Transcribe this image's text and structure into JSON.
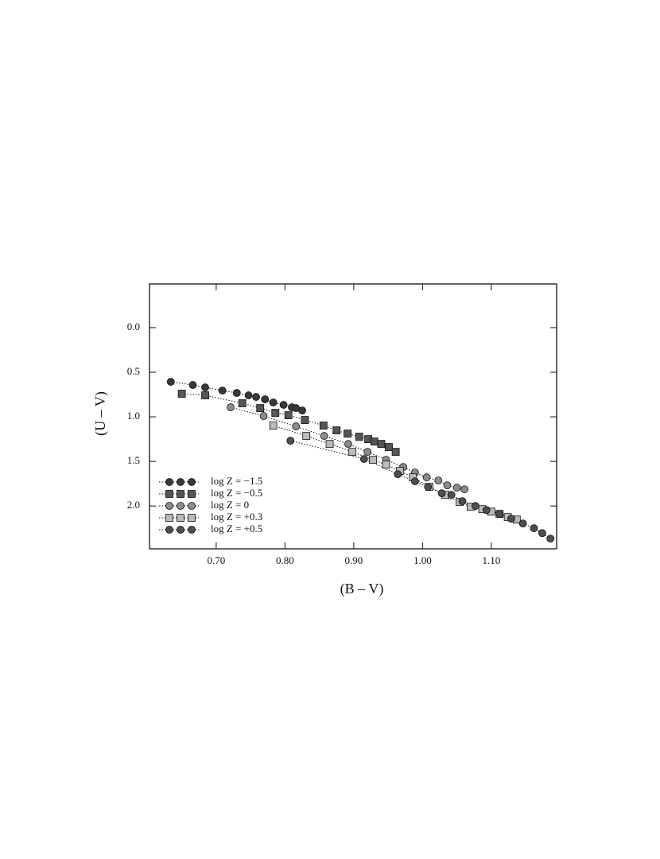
{
  "chart_data": {
    "type": "line",
    "x_label": "(B – V)",
    "y_label": "(U – V)",
    "xlim": [
      0.603,
      1.195
    ],
    "ylim": [
      -0.49,
      2.48
    ],
    "invert_y": true,
    "xticks": [
      {
        "value": 0.7,
        "label": "0.70"
      },
      {
        "value": 0.8,
        "label": "0.80"
      },
      {
        "value": 0.9,
        "label": "0.90"
      },
      {
        "value": 1.0,
        "label": "1.00"
      },
      {
        "value": 1.1,
        "label": "1.10"
      }
    ],
    "yticks": [
      {
        "value": 0,
        "label": "0.0"
      },
      {
        "value": 0.5,
        "label": "0.5"
      },
      {
        "value": 1.0,
        "label": "1.0"
      },
      {
        "value": 1.5,
        "label": "1.5"
      },
      {
        "value": 2.0,
        "label": "2.0"
      }
    ],
    "legend_position": "lower left",
    "line_style": "dotted",
    "series": [
      {
        "name": "log Z = −1.5",
        "color": "#383838",
        "marker": "circle",
        "x": [
          0.634,
          0.666,
          0.684,
          0.709,
          0.73,
          0.747,
          0.758,
          0.771,
          0.783,
          0.798,
          0.81,
          0.816,
          0.825
        ],
        "values": [
          0.607,
          0.643,
          0.67,
          0.705,
          0.732,
          0.759,
          0.777,
          0.804,
          0.839,
          0.866,
          0.893,
          0.902,
          0.929
        ]
      },
      {
        "name": "log Z = −0.5",
        "color": "#555555",
        "marker": "square",
        "x": [
          0.65,
          0.684,
          0.738,
          0.764,
          0.786,
          0.805,
          0.829,
          0.856,
          0.875,
          0.891,
          0.908,
          0.921,
          0.93,
          0.94,
          0.951,
          0.961
        ],
        "values": [
          0.741,
          0.759,
          0.848,
          0.902,
          0.955,
          0.982,
          1.036,
          1.098,
          1.152,
          1.188,
          1.223,
          1.25,
          1.277,
          1.304,
          1.339,
          1.393
        ]
      },
      {
        "name": "log Z = 0",
        "color": "#8c8c8c",
        "marker": "circle",
        "x": [
          0.721,
          0.769,
          0.816,
          0.857,
          0.892,
          0.92,
          0.947,
          0.972,
          0.989,
          1.006,
          1.023,
          1.036,
          1.05,
          1.061
        ],
        "values": [
          0.893,
          0.991,
          1.107,
          1.214,
          1.304,
          1.393,
          1.482,
          1.563,
          1.625,
          1.679,
          1.714,
          1.768,
          1.795,
          1.813
        ]
      },
      {
        "name": "log Z = +0.3",
        "color": "#bbbbbb",
        "marker": "square",
        "x": [
          0.783,
          0.831,
          0.865,
          0.898,
          0.928,
          0.947,
          0.967,
          0.986,
          1.01,
          1.033,
          1.054,
          1.07,
          1.087,
          1.1,
          1.112,
          1.124,
          1.137
        ],
        "values": [
          1.098,
          1.214,
          1.304,
          1.393,
          1.482,
          1.536,
          1.607,
          1.679,
          1.786,
          1.875,
          1.955,
          2.009,
          2.036,
          2.063,
          2.089,
          2.125,
          2.152
        ]
      },
      {
        "name": "log Z = +0.5",
        "color": "#4e4e4e",
        "marker": "circle",
        "x": [
          0.808,
          0.915,
          0.964,
          0.989,
          1.008,
          1.028,
          1.042,
          1.058,
          1.077,
          1.093,
          1.112,
          1.129,
          1.146,
          1.162,
          1.174,
          1.186
        ],
        "values": [
          1.268,
          1.473,
          1.643,
          1.723,
          1.786,
          1.857,
          1.875,
          1.946,
          2.0,
          2.045,
          2.089,
          2.143,
          2.196,
          2.25,
          2.304,
          2.366
        ]
      }
    ]
  }
}
